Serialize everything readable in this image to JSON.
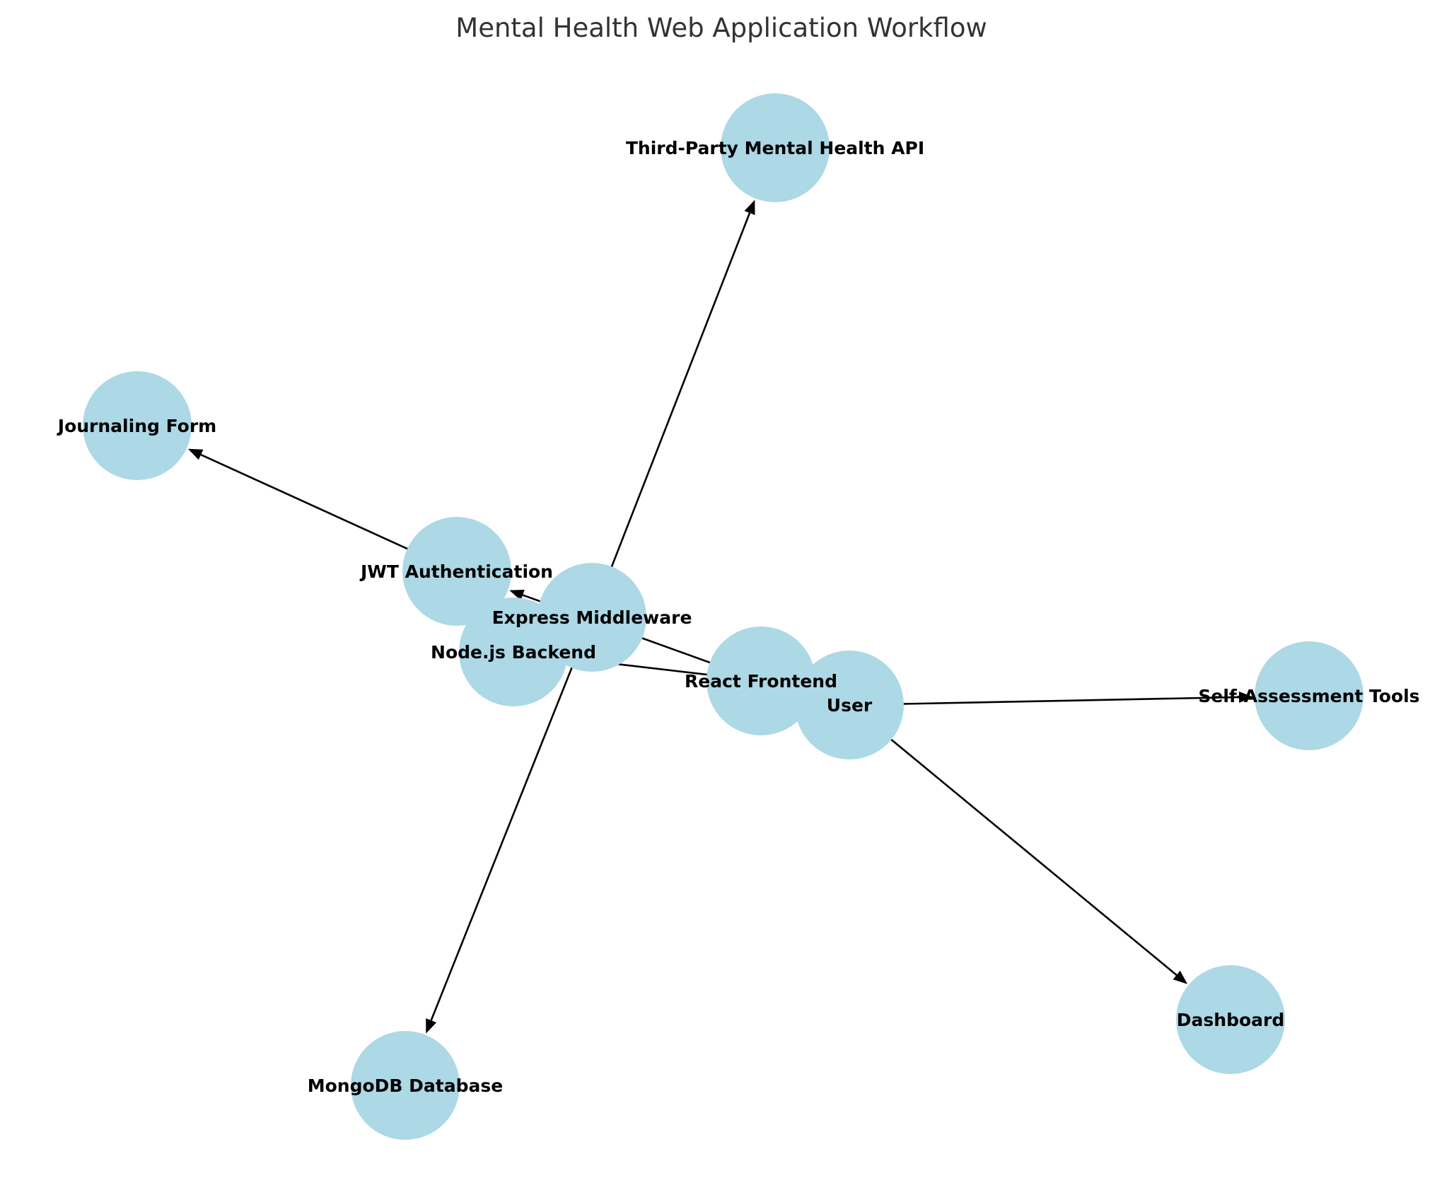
{
  "title": "Mental Health Web Application Workflow",
  "colors": {
    "node_fill": "#add8e6",
    "edge": "#000000",
    "title": "#333333"
  },
  "nodes": [
    {
      "id": "third-party-api",
      "label": "Third-Party Mental Health API"
    },
    {
      "id": "journaling-form",
      "label": "Journaling Form"
    },
    {
      "id": "jwt-auth",
      "label": "JWT Authentication"
    },
    {
      "id": "node-backend",
      "label": "Node.js Backend"
    },
    {
      "id": "express-middleware",
      "label": "Express Middleware"
    },
    {
      "id": "react-frontend",
      "label": "React Frontend"
    },
    {
      "id": "user",
      "label": "User"
    },
    {
      "id": "self-assessment",
      "label": "Self-Assessment Tools"
    },
    {
      "id": "dashboard",
      "label": "Dashboard"
    },
    {
      "id": "mongodb",
      "label": "MongoDB Database"
    }
  ],
  "edges": [
    {
      "from": "express-middleware",
      "to": "third-party-api"
    },
    {
      "from": "express-middleware",
      "to": "mongodb"
    },
    {
      "from": "jwt-auth",
      "to": "journaling-form"
    },
    {
      "from": "react-frontend",
      "to": "jwt-auth"
    },
    {
      "from": "react-frontend",
      "to": "node-backend"
    },
    {
      "from": "user",
      "to": "self-assessment"
    },
    {
      "from": "user",
      "to": "dashboard"
    }
  ]
}
